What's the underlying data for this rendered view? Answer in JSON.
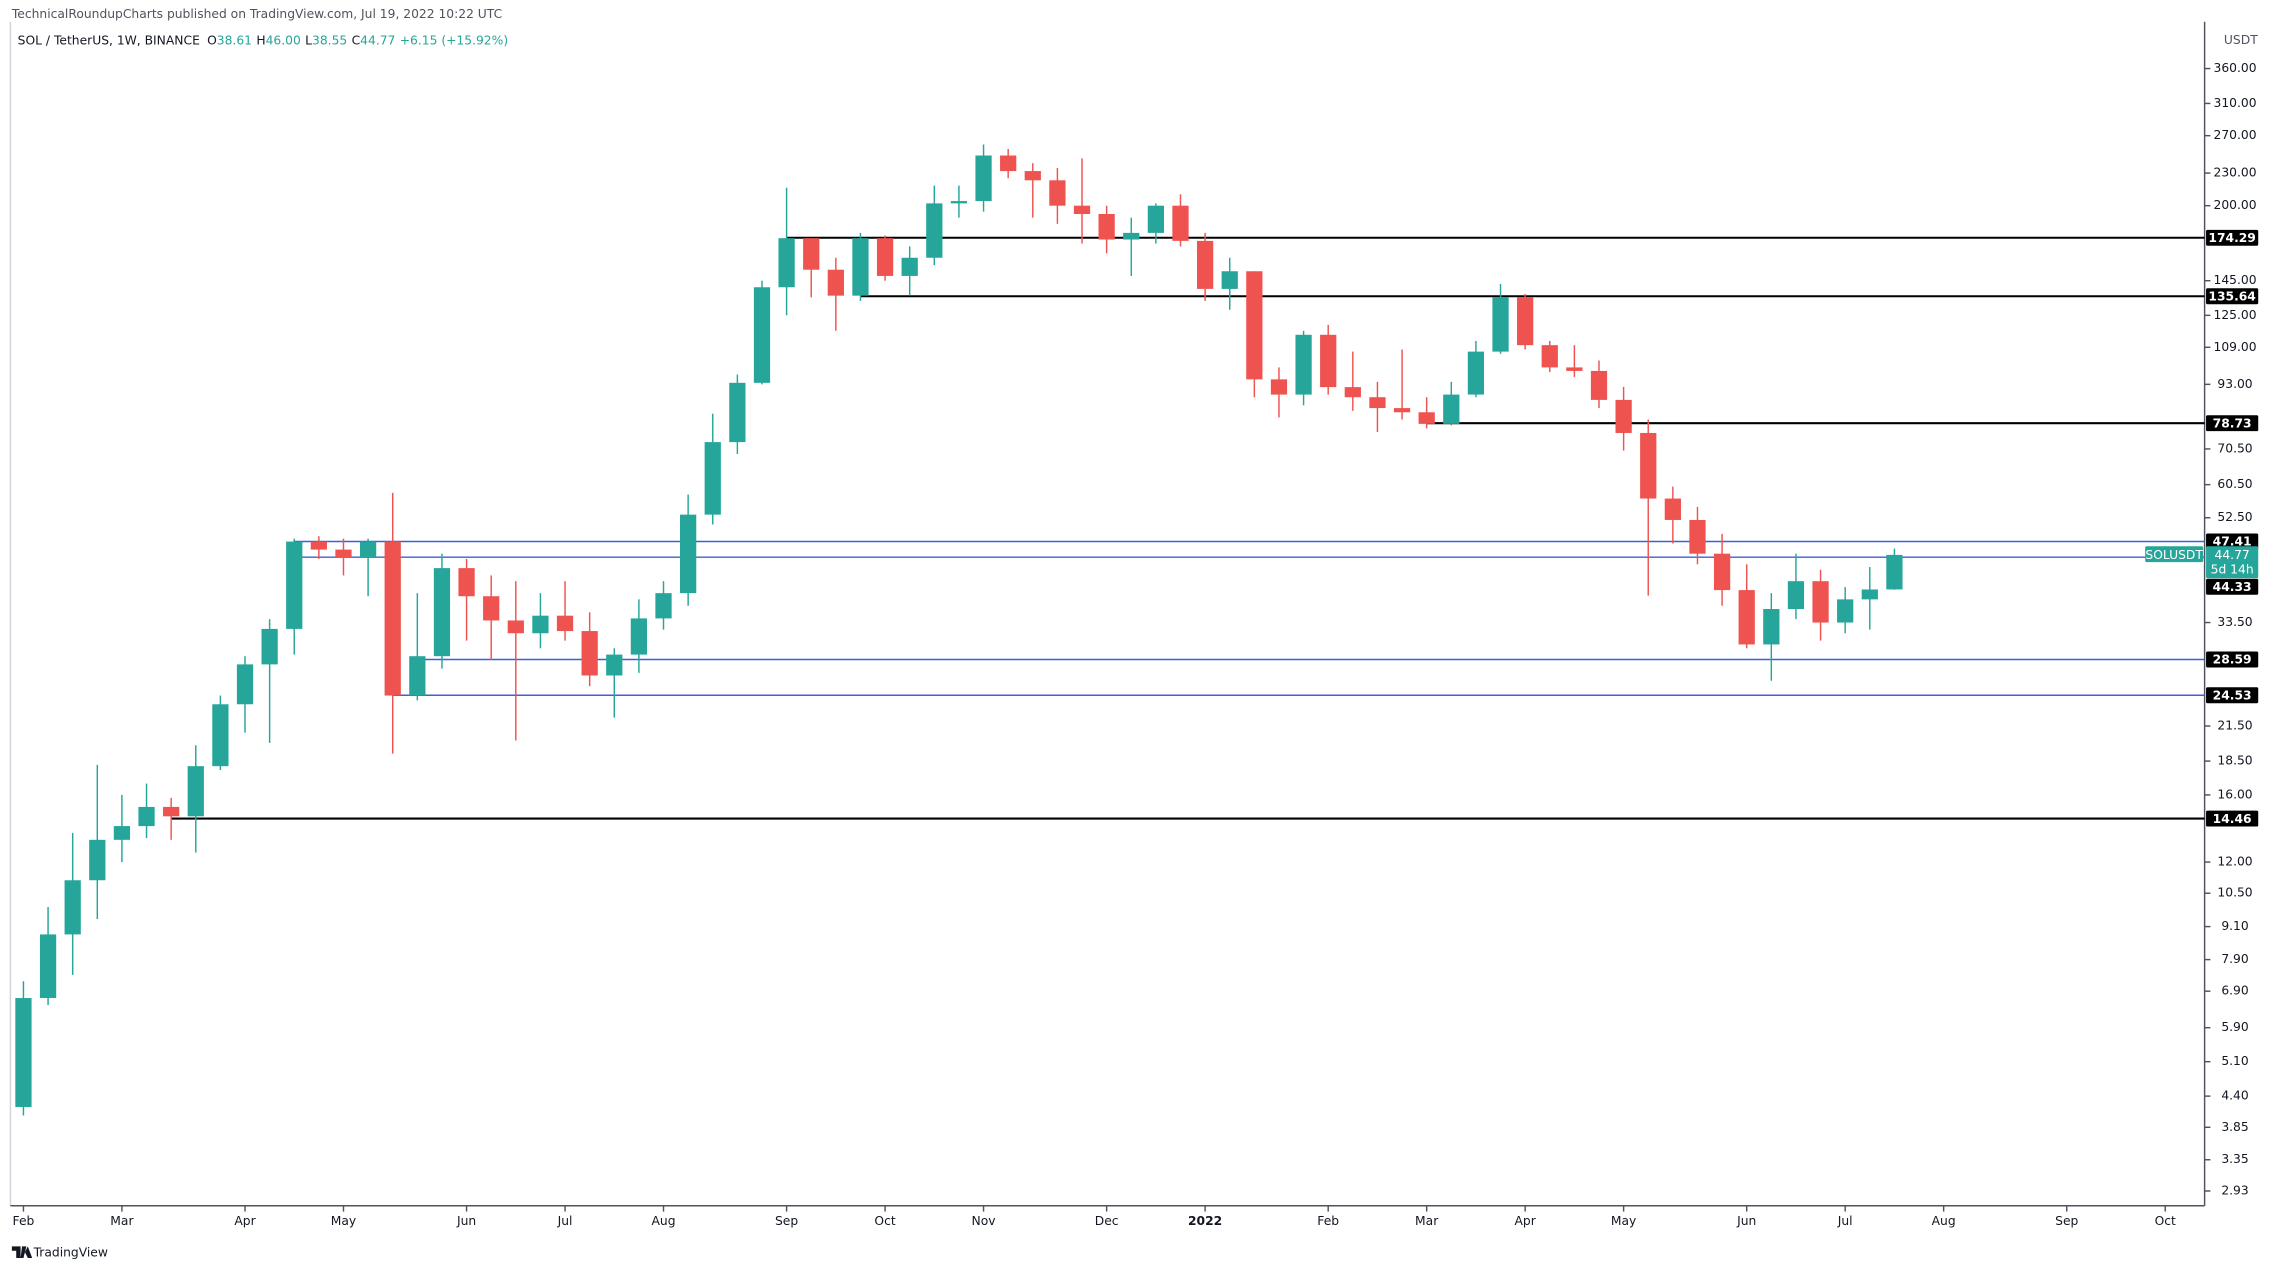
{
  "chart_data": {
    "type": "candlestick",
    "caption": "TechnicalRoundupCharts published on TradingView.com, Jul 19, 2022 10:22 UTC",
    "title": "SOL / TetherUS, 1W, BINANCE",
    "ohlc": [
      {
        "label": "O",
        "value": "38.61"
      },
      {
        "label": "H",
        "value": "46.00"
      },
      {
        "label": "L",
        "value": "38.55"
      },
      {
        "label": "C",
        "value": "44.77"
      }
    ],
    "change": "+6.15 (+15.92%)",
    "y_unit": "USDT",
    "brand": "TradingView",
    "log_scale": true,
    "up_color": "#26a69a",
    "down_color": "#ef5350",
    "open": [
      4.2,
      6.7,
      8.8,
      11.1,
      13.2,
      14.0,
      15.2,
      14.6,
      18.1,
      23.6,
      28,
      32.6,
      47.4,
      45.8,
      44.2,
      47.4,
      24.5,
      29,
      42.3,
      37.5,
      33.8,
      32,
      34.5,
      32.3,
      26.7,
      29.2,
      34.1,
      38,
      53.2,
      72.6,
      93.6,
      141,
      174,
      152,
      136,
      174,
      148,
      160,
      202,
      204,
      248,
      232,
      223,
      200,
      193,
      173,
      178,
      200,
      172,
      140,
      151,
      95,
      89,
      115,
      91.9,
      88,
      84,
      82.5,
      78.5,
      89,
      107,
      135,
      110,
      100,
      98.5,
      87,
      75.5,
      57,
      52,
      45,
      38.5,
      30.5,
      35.5,
      40,
      33.5,
      37,
      38.61
    ],
    "high": [
      7.2,
      9.9,
      13.6,
      18.2,
      16.0,
      16.8,
      15.8,
      19.8,
      24.5,
      29,
      34,
      48,
      48.5,
      48,
      48,
      58.4,
      38,
      45,
      44,
      41,
      40,
      38,
      40,
      35,
      30,
      37,
      40,
      58,
      82,
      97,
      145,
      216,
      174,
      160,
      178,
      176,
      168,
      218,
      218,
      260,
      255,
      240,
      235,
      245,
      200,
      190,
      202,
      210,
      178,
      160,
      151,
      100,
      117,
      120,
      107,
      94,
      108,
      88,
      94,
      112,
      143,
      137,
      112,
      110,
      103,
      92,
      80,
      60,
      55,
      49,
      43,
      38,
      45,
      42,
      39,
      42.5,
      46
    ],
    "low": [
      4.05,
      6.5,
      7.4,
      9.4,
      12.0,
      13.3,
      13.2,
      12.5,
      17.8,
      20.9,
      20,
      29.2,
      44,
      41,
      37.5,
      19.1,
      24,
      27.5,
      31,
      28.5,
      20.2,
      30,
      31,
      25.5,
      22.3,
      27,
      32.5,
      36,
      51,
      69,
      93,
      125,
      135,
      117,
      133,
      145,
      136,
      155,
      190,
      195,
      225,
      190,
      185,
      170,
      163,
      148,
      170,
      168,
      133,
      128,
      88,
      80.7,
      85,
      89,
      83,
      75.8,
      80,
      77,
      78,
      88,
      106,
      108,
      98,
      96,
      84,
      70,
      37.6,
      47,
      43,
      36,
      30,
      26.1,
      34,
      31,
      32,
      32.5,
      38.55
    ],
    "close": [
      6.7,
      8.8,
      11.1,
      13.2,
      14.0,
      15.2,
      14.6,
      18.1,
      23.6,
      28,
      32.6,
      47.4,
      45.8,
      44.2,
      47.4,
      24.5,
      29,
      42.3,
      37.5,
      33.8,
      32,
      34.5,
      32.3,
      26.7,
      29.2,
      34.1,
      38,
      53.2,
      72.6,
      93.6,
      141,
      174,
      152,
      136,
      174,
      148,
      160,
      202,
      204,
      248,
      232,
      223,
      200,
      193,
      173,
      178,
      200,
      172,
      140,
      151,
      95,
      89,
      115,
      91.9,
      88,
      84,
      82.5,
      78.5,
      89,
      107,
      135,
      110,
      100,
      98.5,
      87,
      75.5,
      57,
      52,
      45,
      38.5,
      30.5,
      35.5,
      40,
      33.5,
      37,
      38.6,
      44.77
    ],
    "xlim": [
      -0.47,
      88.6
    ],
    "xticks": [
      {
        "value": 0,
        "label": "Feb"
      },
      {
        "value": 4,
        "label": "Mar"
      },
      {
        "value": 9,
        "label": "Apr"
      },
      {
        "value": 13,
        "label": "May"
      },
      {
        "value": 18,
        "label": "Jun"
      },
      {
        "value": 22,
        "label": "Jul"
      },
      {
        "value": 26,
        "label": "Aug"
      },
      {
        "value": 31,
        "label": "Sep"
      },
      {
        "value": 35,
        "label": "Oct"
      },
      {
        "value": 39,
        "label": "Nov"
      },
      {
        "value": 44,
        "label": "Dec"
      },
      {
        "value": 48,
        "label": "2022"
      },
      {
        "value": 53,
        "label": "Feb"
      },
      {
        "value": 57,
        "label": "Mar"
      },
      {
        "value": 61,
        "label": "Apr"
      },
      {
        "value": 65,
        "label": "May"
      },
      {
        "value": 70,
        "label": "Jun"
      },
      {
        "value": 74,
        "label": "Jul"
      },
      {
        "value": 78,
        "label": "Aug"
      },
      {
        "value": 83,
        "label": "Sep"
      },
      {
        "value": 87,
        "label": "Oct"
      }
    ],
    "ylim": [
      2.75,
      440
    ],
    "yticks": [
      {
        "value": 360,
        "label": "360.00"
      },
      {
        "value": 310,
        "label": "310.00"
      },
      {
        "value": 270,
        "label": "270.00"
      },
      {
        "value": 230,
        "label": "230.00"
      },
      {
        "value": 200,
        "label": "200.00"
      },
      {
        "value": 145,
        "label": "145.00"
      },
      {
        "value": 125,
        "label": "125.00"
      },
      {
        "value": 109,
        "label": "109.00"
      },
      {
        "value": 93,
        "label": "93.00"
      },
      {
        "value": 70.5,
        "label": "70.50"
      },
      {
        "value": 60.5,
        "label": "60.50"
      },
      {
        "value": 52.5,
        "label": "52.50"
      },
      {
        "value": 33.5,
        "label": "33.50"
      },
      {
        "value": 21.5,
        "label": "21.50"
      },
      {
        "value": 18.5,
        "label": "18.50"
      },
      {
        "value": 16,
        "label": "16.00"
      },
      {
        "value": 12,
        "label": "12.00"
      },
      {
        "value": 10.5,
        "label": "10.50"
      },
      {
        "value": 9.1,
        "label": "9.10"
      },
      {
        "value": 7.9,
        "label": "7.90"
      },
      {
        "value": 6.9,
        "label": "6.90"
      },
      {
        "value": 5.9,
        "label": "5.90"
      },
      {
        "value": 5.1,
        "label": "5.10"
      },
      {
        "value": 4.4,
        "label": "4.40"
      },
      {
        "value": 3.85,
        "label": "3.85"
      },
      {
        "value": 3.35,
        "label": "3.35"
      },
      {
        "value": 2.93,
        "label": "2.93"
      }
    ],
    "levels": [
      {
        "value": 174.29,
        "color": "#000000",
        "from": 31
      },
      {
        "value": 135.64,
        "color": "#000000",
        "from": 34
      },
      {
        "value": 78.73,
        "color": "#000000",
        "from": 57
      },
      {
        "value": 47.41,
        "color": "#3d5fd9",
        "from": 11
      },
      {
        "value": 44.33,
        "color": "#3d5fd9",
        "from": 11
      },
      {
        "value": 28.59,
        "color": "#3d5fd9",
        "from": 16
      },
      {
        "value": 24.53,
        "color": "#3d5fd9",
        "from": 15
      },
      {
        "value": 14.46,
        "color": "#000000",
        "from": 6
      }
    ],
    "last_price": {
      "symbol": "SOLUSDT",
      "value": 44.77,
      "countdown": "5d 14h",
      "color": "#26a69a"
    }
  }
}
